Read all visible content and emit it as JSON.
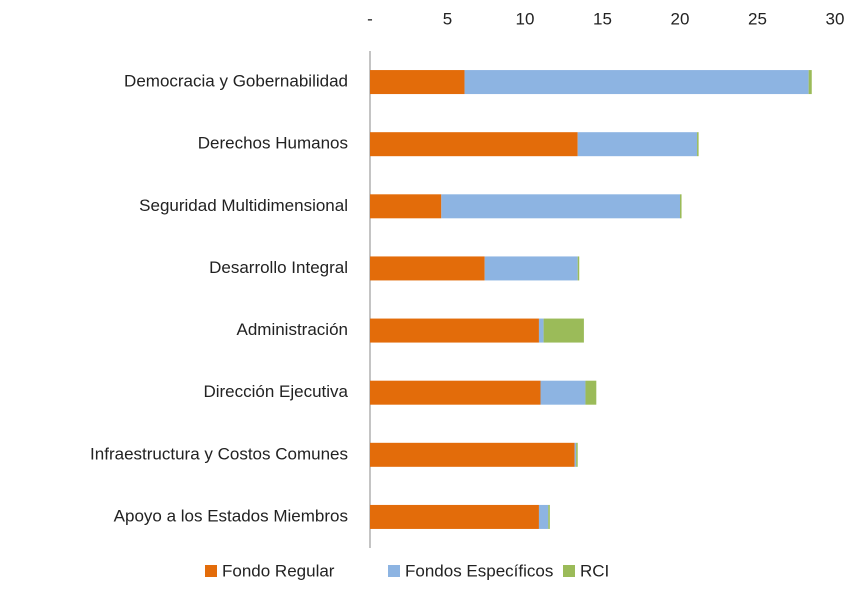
{
  "chart_data": {
    "type": "stacked-barh",
    "categories": [
      "Democracia y Gobernabilidad",
      "Derechos Humanos",
      "Seguridad Multidimensional",
      "Desarrollo Integral",
      "Administración",
      "Dirección Ejecutiva",
      "Infraestructura y Costos Comunes",
      "Apoyo a los Estados Miembros"
    ],
    "series": [
      {
        "name": "Fondo Regular",
        "color": "#e36c0a",
        "values": [
          6.1,
          13.4,
          4.6,
          7.4,
          10.9,
          11.0,
          13.2,
          10.9
        ]
      },
      {
        "name": "Fondos Específicos",
        "color": "#8db4e2",
        "values": [
          22.2,
          7.7,
          15.4,
          6.0,
          0.3,
          2.9,
          0.1,
          0.6
        ]
      },
      {
        "name": "RCI",
        "color": "#9bbb59",
        "values": [
          0.2,
          0.1,
          0.1,
          0.1,
          2.6,
          0.7,
          0.1,
          0.1
        ]
      }
    ],
    "xlim": [
      0,
      30
    ],
    "xticks": [
      {
        "value": 0,
        "label": "-"
      },
      5,
      10,
      15,
      20,
      25,
      30
    ],
    "legend": "bottom"
  }
}
